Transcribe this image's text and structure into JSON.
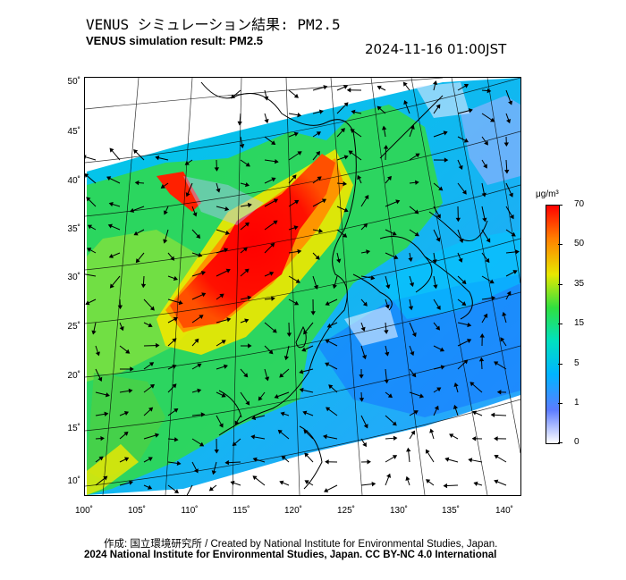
{
  "title": {
    "jp": "VENUS シミュレーション結果: PM2.5",
    "en": "VENUS simulation result: PM2.5"
  },
  "timestamp": "2024-11-16 01:00JST",
  "map": {
    "lat_ticks": [
      "50˚",
      "45˚",
      "40˚",
      "35˚",
      "30˚",
      "25˚",
      "20˚",
      "15˚",
      "10˚"
    ],
    "lon_ticks": [
      "100˚",
      "105˚",
      "110˚",
      "115˚",
      "120˚",
      "125˚",
      "130˚",
      "135˚",
      "140˚"
    ],
    "lat_range": [
      9,
      50
    ],
    "lon_range": [
      100,
      141
    ]
  },
  "colorbar": {
    "unit": "μg/m³",
    "ticks": [
      "70",
      "50",
      "35",
      "15",
      "5",
      "1",
      "0"
    ],
    "colors": [
      "#ffffff",
      "#5c7cff",
      "#00b4ff",
      "#00e0c0",
      "#30e040",
      "#e8e800",
      "#ff8000",
      "#ff0000"
    ]
  },
  "credits": {
    "line1": "作成: 国立環境研究所 / Created by National Institute for Environmental Studies, Japan.",
    "line2": "2024 National Institute for Environmental Studies, Japan. CC BY-NC 4.0 International"
  }
}
